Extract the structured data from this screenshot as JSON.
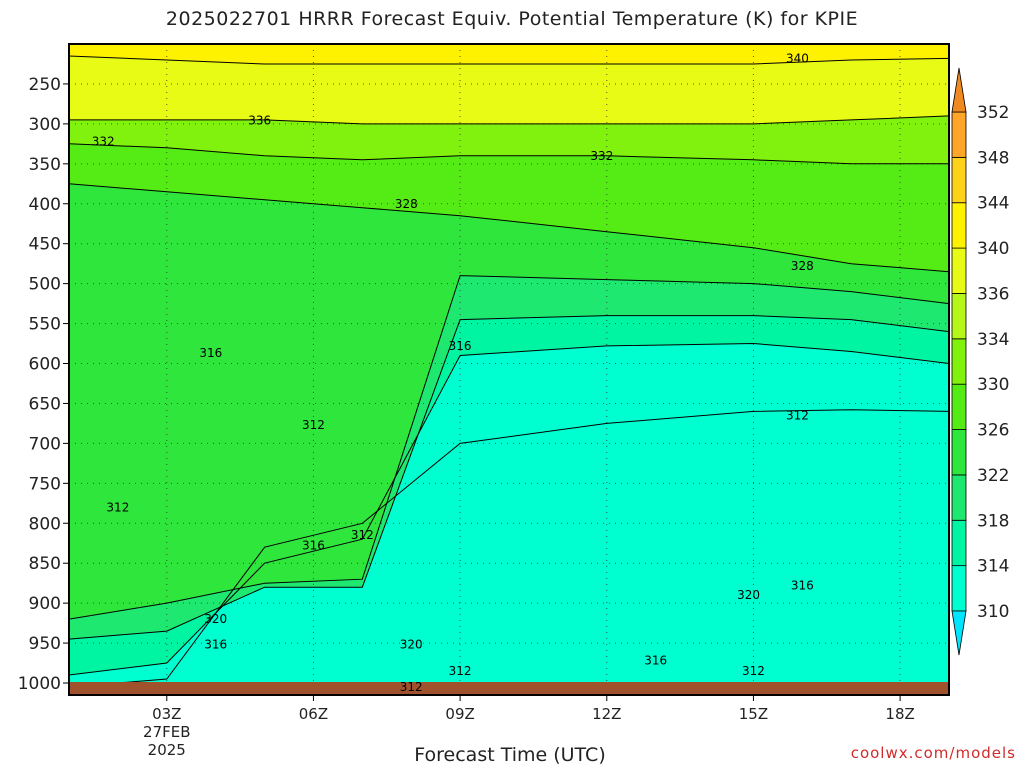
{
  "title": "2025022701 HRRR Forecast Equiv. Potential Temperature (K) for KPIE",
  "xlabel": "Forecast Time (UTC)",
  "credit": "coolwx.com/models",
  "chart_data": {
    "type": "heatmap",
    "title": "2025022701 HRRR Forecast Equiv. Potential Temperature (K) for KPIE",
    "xlabel": "Forecast Time (UTC)",
    "ylabel": "",
    "x_ticks": [
      {
        "label": "03Z",
        "hour": 3
      },
      {
        "label": "06Z",
        "hour": 6
      },
      {
        "label": "09Z",
        "hour": 9
      },
      {
        "label": "12Z",
        "hour": 12
      },
      {
        "label": "15Z",
        "hour": 15
      },
      {
        "label": "18Z",
        "hour": 18
      }
    ],
    "x_date_label": [
      "27FEB",
      "2025"
    ],
    "x_range_hours": [
      1,
      19
    ],
    "y_ticks": [
      250,
      300,
      350,
      400,
      450,
      500,
      550,
      600,
      650,
      700,
      750,
      800,
      850,
      900,
      950,
      1000
    ],
    "y_range_hpa": [
      1015,
      200
    ],
    "y_reversed": true,
    "grid": true,
    "colorbar": {
      "levels": [
        310,
        314,
        318,
        322,
        326,
        330,
        334,
        336,
        340,
        344,
        348,
        352
      ],
      "colors": [
        "#00e5ff",
        "#00ffd0",
        "#00f5a2",
        "#1fe870",
        "#2ee63c",
        "#54ec14",
        "#80f20e",
        "#b6f71a",
        "#e8fb14",
        "#fff200",
        "#ffd21a",
        "#ffa62a",
        "#f08a20"
      ],
      "extend": "both",
      "placement": "right"
    },
    "series": [
      {
        "theta": 312,
        "pressure": [
          1005,
          995,
          830,
          800,
          700,
          675,
          660,
          658,
          660
        ]
      },
      {
        "theta": 316,
        "pressure": [
          990,
          975,
          850,
          820,
          590,
          578,
          575,
          585,
          600
        ]
      },
      {
        "theta": 320,
        "pressure": [
          945,
          935,
          880,
          880,
          545,
          540,
          540,
          545,
          560
        ]
      },
      {
        "theta": 324,
        "pressure": [
          920,
          900,
          875,
          870,
          490,
          495,
          500,
          510,
          525
        ]
      },
      {
        "theta": 328,
        "pressure": [
          375,
          385,
          395,
          405,
          415,
          435,
          455,
          475,
          485
        ]
      },
      {
        "theta": 332,
        "pressure": [
          325,
          330,
          340,
          345,
          340,
          340,
          345,
          350,
          350
        ]
      },
      {
        "theta": 336,
        "pressure": [
          295,
          295,
          295,
          300,
          300,
          300,
          300,
          295,
          290
        ]
      },
      {
        "theta": 340,
        "pressure": [
          215,
          220,
          225,
          225,
          225,
          225,
          225,
          220,
          218
        ]
      }
    ],
    "series_hours": [
      1,
      3,
      5,
      7,
      9,
      12,
      15,
      17,
      19
    ],
    "contour_labels": [
      {
        "text": "340",
        "hour": 15.9,
        "pressure": 218
      },
      {
        "text": "336",
        "hour": 4.9,
        "pressure": 296
      },
      {
        "text": "332",
        "hour": 1.7,
        "pressure": 322
      },
      {
        "text": "332",
        "hour": 11.9,
        "pressure": 340
      },
      {
        "text": "328",
        "hour": 7.9,
        "pressure": 400
      },
      {
        "text": "328",
        "hour": 16.0,
        "pressure": 478
      },
      {
        "text": "316",
        "hour": 3.9,
        "pressure": 587
      },
      {
        "text": "316",
        "hour": 9.0,
        "pressure": 578
      },
      {
        "text": "312",
        "hour": 6.0,
        "pressure": 677
      },
      {
        "text": "312",
        "hour": 15.9,
        "pressure": 665
      },
      {
        "text": "312",
        "hour": 2.0,
        "pressure": 780
      },
      {
        "text": "312",
        "hour": 7.0,
        "pressure": 815
      },
      {
        "text": "316",
        "hour": 6.0,
        "pressure": 828
      },
      {
        "text": "316",
        "hour": 16.0,
        "pressure": 878
      },
      {
        "text": "320",
        "hour": 14.9,
        "pressure": 890
      },
      {
        "text": "320",
        "hour": 4.0,
        "pressure": 920
      },
      {
        "text": "316",
        "hour": 4.0,
        "pressure": 952
      },
      {
        "text": "320",
        "hour": 8.0,
        "pressure": 952
      },
      {
        "text": "316",
        "hour": 13.0,
        "pressure": 972
      },
      {
        "text": "312",
        "hour": 9.0,
        "pressure": 985
      },
      {
        "text": "312",
        "hour": 15.0,
        "pressure": 985
      },
      {
        "text": "312",
        "hour": 8.0,
        "pressure": 1005
      }
    ]
  }
}
